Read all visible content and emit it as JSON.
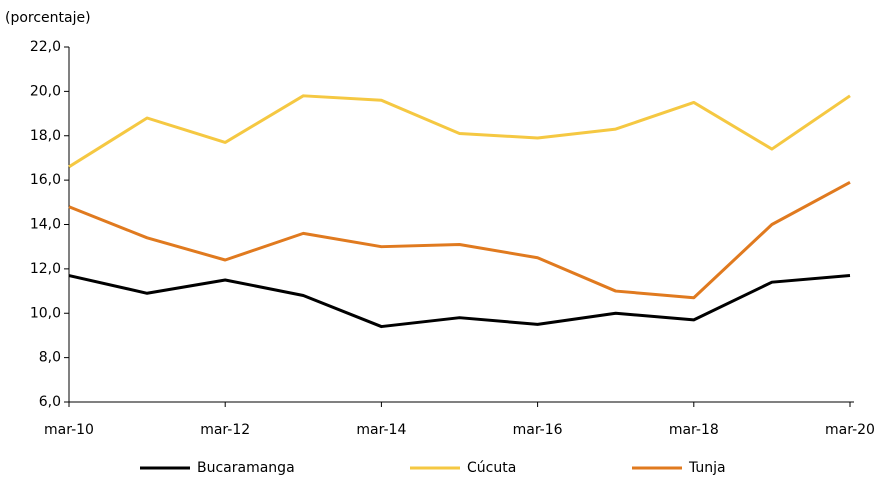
{
  "chart_data": {
    "type": "line",
    "y_label": "(porcentaje)",
    "categories": [
      "mar-10",
      null,
      "mar-12",
      null,
      "mar-14",
      null,
      "mar-16",
      null,
      "mar-18",
      null,
      "mar-20"
    ],
    "series": [
      {
        "name": "Bucaramanga",
        "color": "#000000",
        "values": [
          11.7,
          10.9,
          11.5,
          10.8,
          9.4,
          9.8,
          9.5,
          10.0,
          9.7,
          11.4,
          11.7
        ]
      },
      {
        "name": "Cúcuta",
        "color": "#f5c842",
        "values": [
          16.6,
          18.8,
          17.7,
          19.8,
          19.6,
          18.1,
          17.9,
          18.3,
          19.5,
          17.4,
          19.8
        ]
      },
      {
        "name": "Tunja",
        "color": "#e07a1f",
        "values": [
          14.8,
          13.4,
          12.4,
          13.6,
          13.0,
          13.1,
          12.5,
          11.0,
          10.7,
          14.0,
          15.9
        ]
      }
    ],
    "ylim": [
      6,
      22
    ],
    "yticks": [
      {
        "value": 6,
        "label": "6,0"
      },
      {
        "value": 8,
        "label": "8,0"
      },
      {
        "value": 10,
        "label": "10,0"
      },
      {
        "value": 12,
        "label": "12,0"
      },
      {
        "value": 14,
        "label": "14,0"
      },
      {
        "value": 16,
        "label": "16,0"
      },
      {
        "value": 18,
        "label": "18,0"
      },
      {
        "value": 20,
        "label": "20,0"
      },
      {
        "value": 22,
        "label": "22,0"
      }
    ],
    "legend": "bottom"
  }
}
